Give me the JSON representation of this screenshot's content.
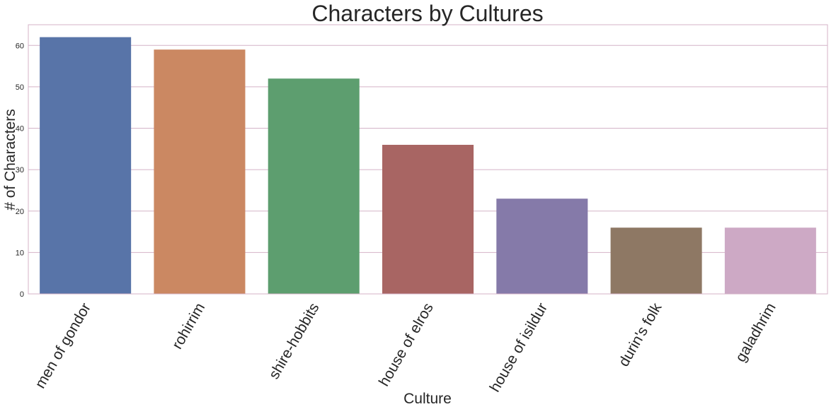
{
  "chart_data": {
    "type": "bar",
    "title": "Characters by Cultures",
    "xlabel": "Culture",
    "ylabel": "# of Characters",
    "categories": [
      "men of gondor",
      "rohirrim",
      "shire-hobbits",
      "house of elros",
      "house of isildur",
      "durin's folk",
      "galadhrim"
    ],
    "values": [
      62,
      59,
      52,
      36,
      23,
      16,
      16
    ],
    "colors": [
      "#5874a8",
      "#cb8862",
      "#5d9e6f",
      "#a86563",
      "#857aa9",
      "#8e7864",
      "#cda9c5"
    ],
    "ylim": [
      0,
      65
    ],
    "yticks": [
      0,
      10,
      20,
      30,
      40,
      50,
      60
    ],
    "grid": true,
    "grid_color": "#d4b3c7",
    "legend": "none"
  }
}
